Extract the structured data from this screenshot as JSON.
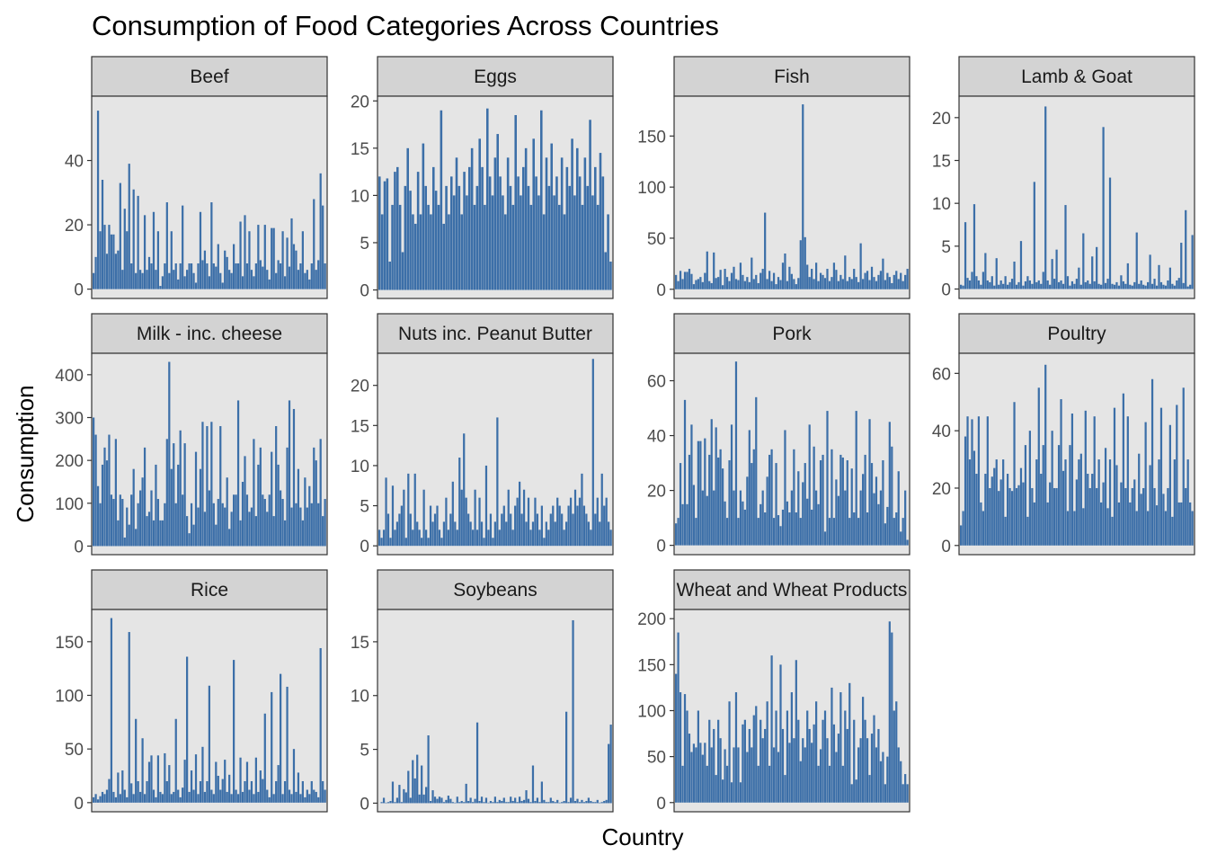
{
  "chart": {
    "title": "Consumption of Food Categories Across Countries",
    "xlabel": "Country",
    "ylabel": "Consumption"
  },
  "colors": {
    "bar": "#3c6fa8",
    "panel_background": "#e5e5e5",
    "strip_background": "#d3d3d3",
    "strip_border": "#333333",
    "tick_text": "#4d4d4d"
  },
  "chart_data": {
    "type": "bar",
    "facet_by": "food_category",
    "layout": "4 columns x 3 rows",
    "x_axis_ticks_shown": false,
    "grid": false,
    "legend": "none",
    "panels": [
      {
        "name": "Beef",
        "ylim": [
          -2.9,
          60
        ],
        "yticks": [
          0,
          20,
          40
        ],
        "values": [
          5,
          10,
          55.5,
          18,
          34,
          20,
          11,
          20,
          17,
          17,
          11,
          12,
          33,
          6,
          25,
          18,
          39,
          8,
          31,
          5,
          29,
          6,
          5,
          23,
          6,
          10,
          8,
          24,
          6,
          18,
          1,
          4,
          8,
          27,
          5,
          18,
          6,
          8,
          3,
          8,
          26,
          4,
          6,
          8,
          8,
          5,
          2,
          8,
          24,
          9,
          12,
          8,
          4,
          27,
          8,
          7,
          14,
          5,
          2,
          12,
          10,
          6,
          5,
          14,
          8,
          8,
          21,
          4,
          23,
          8,
          18,
          6,
          4,
          8,
          20,
          9,
          7,
          20,
          6,
          3,
          19,
          19,
          5,
          9,
          8,
          18,
          4,
          16,
          7,
          22,
          14,
          12,
          6,
          8,
          18,
          5,
          6,
          3,
          8,
          28,
          6,
          9,
          36,
          26,
          8
        ]
      },
      {
        "name": "Eggs",
        "ylim": [
          -0.9,
          20.5
        ],
        "yticks": [
          0,
          5,
          10,
          15,
          20
        ],
        "values": [
          12,
          8,
          11.5,
          11.8,
          3,
          9,
          12.5,
          13,
          9,
          4,
          11,
          15,
          10.5,
          8,
          7,
          12.5,
          8,
          15.5,
          11,
          9,
          8,
          13,
          10.5,
          9,
          19,
          7,
          11,
          8,
          12,
          10,
          14,
          11,
          8,
          12.5,
          10,
          13,
          15,
          9,
          11,
          16,
          13,
          9,
          19.2,
          12,
          10,
          14,
          16.5,
          12,
          10,
          8,
          14,
          11,
          9,
          18.5,
          12,
          10,
          13,
          15,
          11,
          9,
          16,
          12,
          10,
          19,
          8,
          14,
          11,
          15.5,
          10,
          12,
          9,
          14,
          8,
          13,
          11,
          16,
          10,
          15,
          12,
          9,
          14,
          11,
          18,
          10,
          13,
          9,
          14.5,
          12,
          4,
          8,
          3
        ]
      },
      {
        "name": "Fish",
        "ylim": [
          -9,
          189
        ],
        "yticks": [
          0,
          50,
          100,
          150
        ],
        "values": [
          14,
          8,
          18,
          10,
          17,
          17,
          20,
          15,
          5,
          9,
          10,
          12,
          7,
          16,
          37,
          8,
          6,
          36,
          11,
          12,
          19,
          4,
          20,
          12,
          8,
          16,
          22,
          10,
          9,
          26,
          14,
          8,
          12,
          7,
          31,
          10,
          14,
          6,
          16,
          20,
          75,
          10,
          18,
          8,
          16,
          5,
          12,
          9,
          26,
          35,
          8,
          22,
          15,
          10,
          5,
          11,
          48,
          181,
          51,
          24,
          12,
          20,
          10,
          26,
          8,
          16,
          14,
          11,
          20,
          8,
          12,
          26,
          19,
          8,
          14,
          10,
          33,
          8,
          12,
          10,
          20,
          12,
          7,
          45,
          10,
          16,
          18,
          9,
          22,
          12,
          8,
          14,
          18,
          30,
          9,
          16,
          12,
          6,
          14,
          18,
          10,
          16,
          8,
          14,
          20
        ]
      },
      {
        "name": "Lamb & Goat",
        "ylim": [
          -1.1,
          22.5
        ],
        "yticks": [
          0,
          5,
          10,
          15,
          20
        ],
        "values": [
          0.5,
          0.4,
          7.8,
          1.3,
          1,
          2,
          9.9,
          1.5,
          1,
          0.5,
          2,
          4.2,
          1,
          0.8,
          1.5,
          0.4,
          3.6,
          0.5,
          1,
          0.6,
          1.5,
          0.5,
          0.8,
          1.2,
          3.2,
          0.5,
          0.8,
          5.6,
          0.4,
          0.9,
          1.5,
          1,
          0.6,
          12.5,
          0.8,
          1,
          0.6,
          2,
          21.3,
          1,
          0.5,
          3.5,
          1.2,
          4.6,
          0.8,
          1,
          0.6,
          9.8,
          1.5,
          0.4,
          0.9,
          0.6,
          1.2,
          2.5,
          0.5,
          6.5,
          0.8,
          1,
          0.6,
          3.8,
          0.9,
          4.9,
          0.6,
          0.5,
          18.9,
          0.7,
          1.2,
          13,
          0.6,
          0.5,
          0.8,
          0.4,
          1.6,
          0.9,
          0.6,
          3,
          0.5,
          0.4,
          0.8,
          6.6,
          0.6,
          1,
          0.5,
          0.4,
          0.8,
          4,
          0.6,
          1.2,
          0.4,
          2.8,
          0.8,
          0.5,
          0.4,
          1,
          2.5,
          0.6,
          0.4,
          1,
          1.3,
          5.4,
          0.7,
          9.2,
          0.3,
          0.5,
          6.3
        ]
      },
      {
        "name": "Milk - inc. cheese",
        "ylim": [
          -20,
          450
        ],
        "yticks": [
          0,
          100,
          200,
          300,
          400
        ],
        "values": [
          300,
          260,
          140,
          100,
          190,
          230,
          200,
          260,
          120,
          110,
          250,
          60,
          120,
          110,
          20,
          90,
          50,
          120,
          180,
          40,
          100,
          130,
          160,
          230,
          70,
          80,
          130,
          60,
          190,
          110,
          60,
          60,
          100,
          250,
          430,
          180,
          240,
          100,
          190,
          270,
          120,
          240,
          70,
          30,
          100,
          50,
          220,
          90,
          180,
          290,
          80,
          280,
          130,
          290,
          100,
          50,
          110,
          280,
          100,
          90,
          160,
          40,
          80,
          120,
          120,
          340,
          60,
          150,
          210,
          120,
          80,
          90,
          250,
          70,
          190,
          230,
          120,
          110,
          80,
          120,
          220,
          70,
          280,
          190,
          130,
          110,
          60,
          230,
          340,
          90,
          320,
          100,
          180,
          90,
          60,
          160,
          90,
          140,
          100,
          230,
          200,
          100,
          250,
          70,
          110
        ]
      },
      {
        "name": "Nuts inc. Peanut Butter",
        "ylim": [
          -1.1,
          24
        ],
        "yticks": [
          0,
          5,
          10,
          15,
          20
        ],
        "values": [
          2,
          1,
          2,
          8.5,
          4,
          1,
          7.5,
          2,
          3,
          4,
          5,
          7,
          1,
          9,
          4,
          2,
          9,
          3,
          2,
          1,
          7,
          2,
          1,
          5,
          3,
          4,
          5,
          2,
          1,
          3,
          6,
          2,
          4,
          8,
          3,
          2,
          11,
          7,
          14,
          6,
          4,
          3,
          2,
          7,
          2,
          6,
          3,
          1,
          10,
          2,
          4,
          1,
          3,
          16,
          2,
          4,
          5,
          3,
          7,
          4,
          2,
          5,
          6,
          8,
          4,
          7,
          3,
          6,
          2,
          3,
          6,
          4,
          2,
          5,
          1,
          3,
          2,
          4,
          5,
          3,
          6,
          5,
          4,
          2,
          3,
          5,
          6,
          4,
          7,
          5,
          6,
          9,
          5,
          4,
          3,
          2,
          23.3,
          4,
          6,
          3,
          9,
          5,
          6,
          3,
          2
        ]
      },
      {
        "name": "Pork",
        "ylim": [
          -3.4,
          70
        ],
        "yticks": [
          0,
          20,
          40,
          60
        ],
        "values": [
          8,
          10,
          30,
          15,
          53,
          15,
          33,
          44,
          22,
          10,
          38,
          38,
          20,
          39,
          18,
          33,
          46,
          20,
          43,
          32,
          35,
          28,
          16,
          10,
          31,
          44,
          20,
          67,
          10,
          20,
          16,
          13,
          25,
          42,
          30,
          35,
          54,
          10,
          15,
          20,
          12,
          25,
          33,
          35,
          10,
          30,
          11,
          7,
          13,
          42,
          16,
          12,
          20,
          35,
          12,
          27,
          10,
          23,
          30,
          17,
          44,
          13,
          36,
          20,
          15,
          31,
          33,
          5,
          49,
          10,
          35,
          10,
          24,
          18,
          33,
          32,
          20,
          31,
          10,
          28,
          12,
          49,
          10,
          20,
          26,
          33,
          12,
          46,
          30,
          19,
          25,
          15,
          20,
          31,
          8,
          14,
          45,
          36,
          10,
          12,
          27,
          5,
          10,
          20,
          2
        ]
      },
      {
        "name": "Poultry",
        "ylim": [
          -3.2,
          67
        ],
        "yticks": [
          0,
          20,
          40,
          60
        ],
        "values": [
          7,
          12,
          38,
          45,
          30,
          44,
          33,
          25,
          45,
          15,
          12,
          25,
          45,
          20,
          24,
          27,
          30,
          19,
          23,
          30,
          10,
          25,
          20,
          19,
          50,
          20,
          21,
          27,
          22,
          35,
          10,
          40,
          20,
          15,
          30,
          55,
          25,
          35,
          63,
          15,
          22,
          40,
          20,
          20,
          35,
          51,
          26,
          30,
          12,
          35,
          46,
          12,
          23,
          30,
          32,
          13,
          47,
          25,
          20,
          25,
          45,
          20,
          30,
          15,
          22,
          34,
          13,
          30,
          10,
          48,
          28,
          15,
          22,
          53,
          20,
          45,
          15,
          20,
          23,
          12,
          32,
          18,
          20,
          43,
          12,
          28,
          58,
          20,
          14,
          30,
          48,
          18,
          12,
          20,
          42,
          10,
          30,
          49,
          15,
          15,
          55,
          20,
          30,
          15,
          12
        ]
      },
      {
        "name": "Rice",
        "ylim": [
          -8.5,
          180
        ],
        "yticks": [
          0,
          50,
          100,
          150
        ],
        "values": [
          5,
          8,
          3,
          6,
          10,
          8,
          12,
          22,
          172,
          10,
          5,
          28,
          8,
          30,
          12,
          5,
          159,
          18,
          8,
          78,
          20,
          10,
          60,
          8,
          20,
          38,
          44,
          12,
          5,
          44,
          10,
          8,
          46,
          20,
          35,
          8,
          10,
          78,
          12,
          5,
          14,
          40,
          136,
          10,
          30,
          12,
          45,
          8,
          20,
          52,
          10,
          20,
          109,
          12,
          8,
          38,
          25,
          12,
          22,
          40,
          10,
          26,
          8,
          133,
          12,
          8,
          42,
          10,
          20,
          38,
          12,
          20,
          8,
          42,
          10,
          30,
          22,
          83,
          12,
          5,
          103,
          8,
          20,
          35,
          120,
          8,
          20,
          108,
          12,
          8,
          50,
          10,
          28,
          8,
          20,
          5,
          12,
          8,
          20,
          12,
          10,
          5,
          144,
          20,
          12
        ]
      },
      {
        "name": "Soybeans",
        "ylim": [
          -0.8,
          18
        ],
        "yticks": [
          0,
          5,
          10,
          15
        ],
        "values": [
          0,
          0.1,
          0.5,
          0.05,
          0.1,
          0.2,
          2,
          0.1,
          0.5,
          1.7,
          0.1,
          1.3,
          1,
          3,
          0.5,
          4,
          2.3,
          4.5,
          0.8,
          3.5,
          0.8,
          1.5,
          6.3,
          0.2,
          1.2,
          0.6,
          0.4,
          0.6,
          0.5,
          0.1,
          0.3,
          0.7,
          0.4,
          0.1,
          0.05,
          0.6,
          0.1,
          0.2,
          0.1,
          1.8,
          0.2,
          0.5,
          0.1,
          0.4,
          7.5,
          0.2,
          0.6,
          0.1,
          0.5,
          0.05,
          0.2,
          0.1,
          0.6,
          0.1,
          0.3,
          0.2,
          0.5,
          0.1,
          0.1,
          0.6,
          0.2,
          0.5,
          0.1,
          0.6,
          0.2,
          0.3,
          1.2,
          0.4,
          0.1,
          3.5,
          0.2,
          0.5,
          0.1,
          2,
          0.3,
          0.1,
          0.1,
          0.5,
          0.2,
          0.1,
          0.3,
          0.05,
          0.1,
          0.2,
          8.5,
          0.1,
          0.5,
          17,
          0.2,
          0.4,
          0.1,
          0.3,
          0.1,
          0.2,
          0.5,
          0.2,
          0.1,
          0.1,
          0.3,
          0.05,
          0.1,
          0.2,
          0.3,
          5.5,
          7.3
        ]
      },
      {
        "name": "Wheat and Wheat Products",
        "ylim": [
          -10,
          210
        ],
        "yticks": [
          0,
          50,
          100,
          150,
          200
        ],
        "values": [
          140,
          185,
          120,
          40,
          118,
          100,
          75,
          55,
          64,
          60,
          100,
          65,
          52,
          65,
          40,
          90,
          60,
          80,
          30,
          90,
          70,
          25,
          58,
          40,
          110,
          22,
          60,
          120,
          60,
          22,
          85,
          90,
          55,
          80,
          60,
          95,
          105,
          40,
          90,
          70,
          80,
          110,
          40,
          160,
          60,
          100,
          55,
          150,
          80,
          30,
          100,
          65,
          120,
          70,
          155,
          90,
          45,
          70,
          60,
          100,
          80,
          65,
          85,
          110,
          40,
          58,
          90,
          100,
          70,
          40,
          125,
          85,
          55,
          75,
          120,
          40,
          100,
          80,
          130,
          20,
          90,
          25,
          60,
          70,
          115,
          90,
          70,
          30,
          75,
          95,
          60,
          80,
          45,
          55,
          20,
          50,
          197,
          185,
          100,
          110,
          60,
          45,
          20,
          31,
          20
        ]
      }
    ]
  }
}
